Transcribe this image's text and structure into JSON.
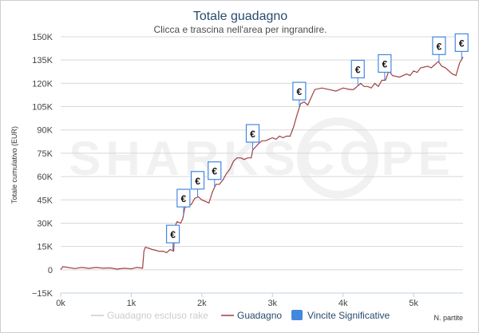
{
  "chart_data": {
    "type": "line",
    "title": "Totale guadagno",
    "subtitle": "Clicca e trascina nell'area per ingrandire.",
    "ylabel": "Totale cumulativo (EUR)",
    "xlabel": "N. partite",
    "watermark": "SHARKSCOPE",
    "x_ticks": [
      "0k",
      "1k",
      "2k",
      "3k",
      "4k",
      "5k"
    ],
    "x_tick_values": [
      0,
      1000,
      2000,
      3000,
      4000,
      5000
    ],
    "xlim": [
      0,
      5700
    ],
    "y_ticks": [
      "150K",
      "135K",
      "120K",
      "105K",
      "90K",
      "75K",
      "60K",
      "45K",
      "30K",
      "15K",
      "0",
      "−15K"
    ],
    "y_tick_values": [
      150000,
      135000,
      120000,
      105000,
      90000,
      75000,
      60000,
      45000,
      30000,
      15000,
      0,
      -15000
    ],
    "ylim": [
      -15000,
      150000
    ],
    "grid": "horizontal",
    "series": [
      {
        "name": "Guadagno escluso rake",
        "color": "#cccccc",
        "visible": false,
        "points": []
      },
      {
        "name": "Guadagno",
        "color": "#a04040",
        "points": [
          [
            0,
            0
          ],
          [
            30,
            2000
          ],
          [
            100,
            1500
          ],
          [
            200,
            800
          ],
          [
            300,
            1500
          ],
          [
            400,
            900
          ],
          [
            500,
            1500
          ],
          [
            600,
            1000
          ],
          [
            700,
            1200
          ],
          [
            800,
            400
          ],
          [
            900,
            1000
          ],
          [
            1000,
            600
          ],
          [
            1080,
            1500
          ],
          [
            1160,
            1000
          ],
          [
            1180,
            12000
          ],
          [
            1200,
            14500
          ],
          [
            1250,
            13800
          ],
          [
            1300,
            13000
          ],
          [
            1350,
            12500
          ],
          [
            1400,
            11800
          ],
          [
            1450,
            12000
          ],
          [
            1500,
            11000
          ],
          [
            1550,
            13000
          ],
          [
            1600,
            12000
          ],
          [
            1620,
            28000
          ],
          [
            1650,
            31000
          ],
          [
            1700,
            30000
          ],
          [
            1730,
            33000
          ],
          [
            1760,
            40000
          ],
          [
            1800,
            41000
          ],
          [
            1850,
            42000
          ],
          [
            1900,
            46000
          ],
          [
            1950,
            47000
          ],
          [
            2000,
            45000
          ],
          [
            2050,
            44000
          ],
          [
            2100,
            43000
          ],
          [
            2150,
            50000
          ],
          [
            2200,
            55000
          ],
          [
            2250,
            55000
          ],
          [
            2300,
            58000
          ],
          [
            2350,
            62000
          ],
          [
            2400,
            65000
          ],
          [
            2450,
            70000
          ],
          [
            2500,
            72000
          ],
          [
            2550,
            72000
          ],
          [
            2600,
            71000
          ],
          [
            2650,
            72000
          ],
          [
            2700,
            72000
          ],
          [
            2720,
            77000
          ],
          [
            2760,
            79000
          ],
          [
            2800,
            81000
          ],
          [
            2850,
            83000
          ],
          [
            2900,
            83000
          ],
          [
            2950,
            84000
          ],
          [
            3000,
            85000
          ],
          [
            3050,
            84000
          ],
          [
            3100,
            86000
          ],
          [
            3150,
            85000
          ],
          [
            3200,
            86000
          ],
          [
            3250,
            86000
          ],
          [
            3300,
            92000
          ],
          [
            3350,
            100000
          ],
          [
            3400,
            107000
          ],
          [
            3450,
            108000
          ],
          [
            3500,
            106000
          ],
          [
            3550,
            111000
          ],
          [
            3600,
            116000
          ],
          [
            3700,
            117000
          ],
          [
            3800,
            116000
          ],
          [
            3900,
            115000
          ],
          [
            4000,
            117000
          ],
          [
            4100,
            116000
          ],
          [
            4150,
            116000
          ],
          [
            4200,
            118000
          ],
          [
            4250,
            120000
          ],
          [
            4300,
            118000
          ],
          [
            4350,
            118000
          ],
          [
            4400,
            117000
          ],
          [
            4450,
            120000
          ],
          [
            4500,
            118000
          ],
          [
            4550,
            122000
          ],
          [
            4600,
            122000
          ],
          [
            4650,
            128000
          ],
          [
            4700,
            125000
          ],
          [
            4800,
            124000
          ],
          [
            4900,
            126000
          ],
          [
            4950,
            125000
          ],
          [
            5000,
            128000
          ],
          [
            5050,
            127000
          ],
          [
            5100,
            130000
          ],
          [
            5200,
            131000
          ],
          [
            5250,
            130000
          ],
          [
            5300,
            132000
          ],
          [
            5350,
            134000
          ],
          [
            5400,
            131000
          ],
          [
            5450,
            130000
          ],
          [
            5500,
            128000
          ],
          [
            5550,
            126000
          ],
          [
            5600,
            125000
          ],
          [
            5650,
            133000
          ],
          [
            5700,
            137000
          ]
        ]
      }
    ],
    "significant_wins": {
      "name": "Vincite Significative",
      "color": "#4388e0",
      "symbol": "€",
      "x": [
        1590,
        1740,
        1940,
        2180,
        2720,
        3380,
        4210,
        4590,
        5360,
        5680
      ]
    },
    "legend": {
      "position": "bottom"
    }
  }
}
